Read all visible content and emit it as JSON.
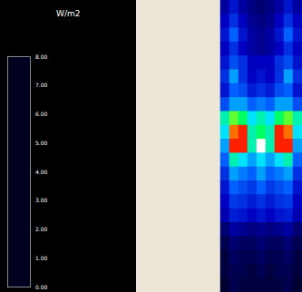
{
  "chart_data": {
    "type": "heatmap",
    "colorbar_label": "W/m2",
    "tick_labels": false,
    "colorbar_range": [
      0,
      8
    ],
    "colorbar_ticks": [
      {
        "value": 0,
        "label": "0.00"
      },
      {
        "value": 1,
        "label": "1.00"
      },
      {
        "value": 2,
        "label": "2.00"
      },
      {
        "value": 3,
        "label": "3.00"
      },
      {
        "value": 4,
        "label": "4.00"
      },
      {
        "value": 5,
        "label": "5.00"
      },
      {
        "value": 6,
        "label": "6.00"
      },
      {
        "value": 7,
        "label": "7.00"
      },
      {
        "value": 8,
        "label": "8.00"
      }
    ],
    "cells": [
      [
        0.8,
        1.2,
        0.8,
        0.6,
        0.5,
        0.6,
        0.8,
        1.2,
        0.8
      ],
      [
        1.0,
        1.5,
        1.0,
        0.7,
        0.6,
        0.7,
        1.0,
        1.5,
        1.0
      ],
      [
        1.2,
        2.0,
        1.2,
        0.8,
        0.7,
        0.8,
        1.2,
        2.0,
        1.2
      ],
      [
        1.0,
        1.5,
        1.0,
        0.8,
        0.7,
        0.8,
        1.0,
        1.5,
        1.0
      ],
      [
        1.2,
        1.8,
        1.5,
        1.0,
        1.0,
        1.0,
        1.5,
        1.8,
        1.2
      ],
      [
        1.5,
        2.5,
        1.5,
        1.0,
        1.2,
        1.0,
        1.5,
        2.5,
        1.5
      ],
      [
        1.2,
        2.0,
        1.8,
        1.3,
        1.5,
        1.3,
        1.8,
        2.0,
        1.2
      ],
      [
        1.8,
        2.5,
        2.5,
        2.0,
        2.2,
        2.0,
        2.5,
        2.5,
        1.8
      ],
      [
        3.5,
        4.5,
        4.0,
        3.0,
        3.5,
        3.0,
        4.0,
        4.5,
        3.5
      ],
      [
        3.0,
        6.5,
        7.0,
        3.5,
        4.0,
        3.5,
        7.0,
        6.5,
        3.0
      ],
      [
        2.5,
        7.0,
        7.0,
        3.5,
        8.0,
        3.5,
        7.0,
        7.0,
        2.5
      ],
      [
        2.0,
        3.5,
        3.0,
        2.5,
        3.0,
        2.5,
        3.0,
        3.5,
        2.0
      ],
      [
        1.5,
        2.5,
        2.2,
        2.0,
        2.5,
        2.0,
        2.2,
        2.5,
        1.5
      ],
      [
        1.2,
        2.0,
        1.8,
        1.6,
        2.0,
        1.6,
        1.8,
        2.0,
        1.2
      ],
      [
        1.0,
        1.6,
        1.5,
        1.3,
        1.5,
        1.3,
        1.5,
        1.6,
        1.0
      ],
      [
        0.9,
        1.3,
        1.2,
        1.0,
        1.2,
        1.0,
        1.2,
        1.3,
        0.9
      ],
      [
        0.5,
        0.8,
        0.7,
        0.6,
        0.7,
        0.6,
        0.7,
        0.8,
        0.5
      ],
      [
        0.3,
        0.5,
        0.4,
        0.4,
        0.5,
        0.4,
        0.4,
        0.5,
        0.3
      ],
      [
        0.2,
        0.4,
        0.3,
        0.3,
        0.4,
        0.3,
        0.3,
        0.4,
        0.2
      ],
      [
        0.2,
        0.3,
        0.3,
        0.2,
        0.3,
        0.2,
        0.3,
        0.3,
        0.2
      ],
      [
        0.1,
        0.3,
        0.2,
        0.2,
        0.2,
        0.2,
        0.2,
        0.3,
        0.1
      ]
    ]
  }
}
